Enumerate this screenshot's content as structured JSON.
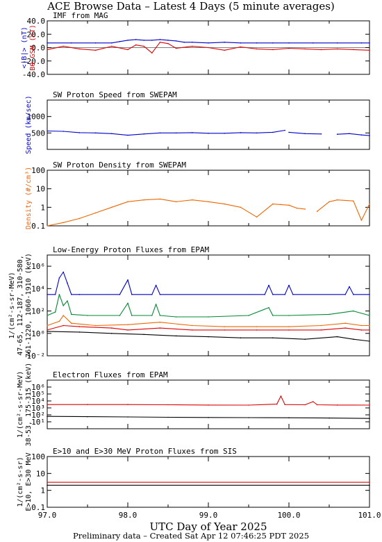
{
  "title": "ACE Browse Data – Latest 4 Days (5 minute averages)",
  "footer": "Preliminary data – Created Sat Apr 12 07:46:25 PDT 2025",
  "colors": {
    "blue": "#0000cc",
    "red": "#dd0000",
    "orange": "#ee6600",
    "green": "#008833",
    "black": "#000000"
  },
  "chart_data": [
    {
      "type": "line",
      "title": "IMF from MAG",
      "ylabel_lines": [
        {
          "text": "<|B|> (nT)",
          "color": "blue"
        },
        {
          "text": "Bθ GSM (nT)",
          "color": "red"
        }
      ],
      "yscale": "linear",
      "ylim": [
        -40,
        40
      ],
      "yticks": [
        "40.0",
        "20.0",
        "0.0",
        "-20.0",
        "-40.0"
      ],
      "xlim": [
        97.0,
        101.0
      ],
      "series": [
        {
          "color": "blue",
          "x": [
            97.0,
            97.3,
            97.6,
            97.8,
            97.9,
            98.0,
            98.1,
            98.2,
            98.3,
            98.4,
            98.5,
            98.6,
            98.7,
            98.8,
            99.0,
            99.2,
            99.4,
            99.6,
            99.8,
            100.0,
            100.3,
            100.6,
            100.9,
            101.0
          ],
          "y": [
            7,
            7,
            7,
            7,
            9,
            11,
            12,
            11,
            11,
            12,
            11,
            10,
            8,
            8,
            7,
            8,
            7,
            7,
            7,
            7,
            7,
            7,
            7,
            7
          ]
        },
        {
          "color": "red",
          "x": [
            97.0,
            97.2,
            97.4,
            97.6,
            97.8,
            98.0,
            98.1,
            98.2,
            98.3,
            98.4,
            98.5,
            98.6,
            98.8,
            99.0,
            99.2,
            99.4,
            99.6,
            99.8,
            100.0,
            100.2,
            100.4,
            100.6,
            100.8,
            101.0
          ],
          "y": [
            -3,
            2,
            -2,
            -4,
            2,
            -3,
            4,
            2,
            -8,
            8,
            6,
            -1,
            2,
            0,
            -4,
            1,
            -2,
            -3,
            -1,
            -2,
            -3,
            -2,
            -3,
            -4
          ]
        }
      ]
    },
    {
      "type": "line",
      "title": "SW Proton Speed from SWEPAM",
      "ylabel_lines": [
        {
          "text": "Speed (km/sec)",
          "color": "blue"
        }
      ],
      "yscale": "linear",
      "ylim": [
        0,
        1500
      ],
      "yticks": [
        "1000",
        "500"
      ],
      "xlim": [
        97.0,
        101.0
      ],
      "series": [
        {
          "color": "blue",
          "x": [
            97.0,
            97.2,
            97.4,
            97.6,
            97.8,
            98.0,
            98.2,
            98.4,
            98.6,
            98.8,
            99.0,
            99.2,
            99.4,
            99.6,
            99.8,
            99.95
          ],
          "y": [
            560,
            550,
            510,
            500,
            480,
            430,
            470,
            500,
            500,
            510,
            490,
            490,
            510,
            500,
            520,
            580
          ]
        },
        {
          "color": "blue",
          "x": [
            100.0,
            100.2,
            100.4
          ],
          "y": [
            520,
            480,
            470
          ]
        },
        {
          "color": "blue",
          "x": [
            100.6,
            100.75,
            100.9,
            101.0
          ],
          "y": [
            460,
            480,
            440,
            420
          ]
        }
      ]
    },
    {
      "type": "line",
      "title": "SW Proton Density from SWEPAM",
      "ylabel_lines": [
        {
          "text": "Density (#/cm³)",
          "color": "orange"
        }
      ],
      "yscale": "log",
      "ylim": [
        0.1,
        100
      ],
      "yticks": [
        "100",
        "10",
        "1",
        "0.1"
      ],
      "xlim": [
        97.0,
        101.0
      ],
      "series": [
        {
          "color": "orange",
          "x": [
            97.0,
            97.2,
            97.4,
            97.6,
            97.8,
            98.0,
            98.2,
            98.4,
            98.6,
            98.8,
            99.0,
            99.2,
            99.4,
            99.6,
            99.8
          ],
          "y": [
            0.1,
            0.15,
            0.25,
            0.5,
            1.0,
            2.0,
            2.5,
            2.8,
            2.0,
            2.5,
            2.0,
            1.5,
            1.0,
            0.3,
            1.5
          ]
        },
        {
          "color": "orange",
          "x": [
            99.8,
            99.9,
            100.0,
            100.1,
            100.2
          ],
          "y": [
            1.5,
            1.4,
            1.3,
            0.9,
            0.8
          ]
        },
        {
          "color": "orange",
          "x": [
            100.35,
            100.5,
            100.6,
            100.8,
            100.9,
            101.0
          ],
          "y": [
            0.6,
            2.0,
            2.5,
            2.2,
            0.2,
            1.5
          ]
        }
      ]
    },
    {
      "type": "line",
      "title": "Low-Energy Proton Fluxes from EPAM",
      "ylabel_lines": [
        {
          "text": "1/(cm²-s-sr-MeV)",
          "color": "black"
        },
        {
          "text": "47-65, 112-187, 310-580,",
          "color": "black"
        },
        {
          "text": "761-1220, 1060-1910 (keV)",
          "color": "black"
        }
      ],
      "yscale": "log",
      "ylim": [
        0.01,
        10000000
      ],
      "yticks": [
        "10⁶",
        "10⁴",
        "10²",
        "10⁰",
        "10⁻²"
      ],
      "xlim": [
        97.0,
        101.0
      ],
      "series": [
        {
          "color": "blue",
          "x": [
            97.0,
            97.1,
            97.15,
            97.2,
            97.25,
            97.3,
            97.4,
            97.9,
            98.0,
            98.05,
            98.3,
            98.35,
            98.4,
            99.7,
            99.75,
            99.8,
            99.95,
            100.0,
            100.05,
            100.7,
            100.75,
            100.8,
            101.0
          ],
          "y": [
            3000,
            3000,
            90000,
            300000,
            30000,
            3000,
            3000,
            3000,
            60000,
            3000,
            3000,
            20000,
            3000,
            3000,
            20000,
            3000,
            3000,
            20000,
            3000,
            3000,
            15000,
            3000,
            3000
          ]
        },
        {
          "color": "green",
          "x": [
            97.0,
            97.1,
            97.15,
            97.2,
            97.25,
            97.3,
            97.5,
            97.9,
            98.0,
            98.05,
            98.3,
            98.35,
            98.4,
            98.6,
            99.0,
            99.5,
            99.75,
            99.8,
            100.0,
            100.5,
            100.8,
            101.0
          ],
          "y": [
            40,
            80,
            3000,
            300,
            800,
            50,
            40,
            40,
            500,
            40,
            40,
            400,
            40,
            30,
            30,
            40,
            200,
            40,
            40,
            50,
            100,
            40
          ]
        },
        {
          "color": "orange",
          "x": [
            97.0,
            97.15,
            97.2,
            97.3,
            97.6,
            98.0,
            98.4,
            98.8,
            99.2,
            99.6,
            100.0,
            100.4,
            100.7,
            100.9,
            101.0
          ],
          "y": [
            5,
            12,
            40,
            8,
            5,
            6,
            10,
            5,
            4,
            4,
            4,
            5,
            8,
            5,
            5
          ]
        },
        {
          "color": "red",
          "x": [
            97.0,
            97.2,
            97.4,
            97.8,
            98.0,
            98.4,
            98.8,
            99.2,
            99.6,
            100.0,
            100.4,
            100.7,
            100.9,
            101.0
          ],
          "y": [
            2,
            5,
            4,
            3,
            2,
            3,
            2,
            2,
            2,
            2,
            2,
            3,
            2,
            2
          ]
        },
        {
          "color": "black",
          "x": [
            97.0,
            97.4,
            97.8,
            98.2,
            98.6,
            99.0,
            99.4,
            99.8,
            100.2,
            100.6,
            100.8,
            101.0
          ],
          "y": [
            1.5,
            1.3,
            1.0,
            0.8,
            0.6,
            0.5,
            0.4,
            0.4,
            0.3,
            0.5,
            0.3,
            0.2
          ]
        }
      ]
    },
    {
      "type": "line",
      "title": "Electron Fluxes from EPAM",
      "ylabel_lines": [
        {
          "text": "1/(cm²-s-sr-MeV)",
          "color": "black"
        },
        {
          "text": "38-53, 175-315 (keV)",
          "color": "black"
        }
      ],
      "yscale": "log",
      "ylim": [
        1,
        10000000
      ],
      "yticks": [
        "10⁶",
        "10⁵",
        "10⁴",
        "10³",
        "10²",
        "10¹"
      ],
      "xlim": [
        97.0,
        101.0
      ],
      "series": [
        {
          "color": "red",
          "x": [
            97.0,
            97.5,
            98.0,
            98.5,
            99.0,
            99.5,
            99.85,
            99.9,
            99.95,
            100.2,
            100.3,
            100.35,
            100.6,
            101.0
          ],
          "y": [
            3000,
            3000,
            3000,
            2800,
            2600,
            2500,
            3500,
            50000,
            3000,
            2800,
            8000,
            2800,
            2600,
            2500
          ]
        },
        {
          "color": "black",
          "x": [
            97.0,
            97.5,
            98.0,
            98.5,
            99.0,
            99.5,
            100.0,
            100.5,
            101.0
          ],
          "y": [
            60,
            55,
            50,
            45,
            42,
            40,
            38,
            35,
            30
          ]
        }
      ]
    },
    {
      "type": "line",
      "title": "E>10 and E>30 MeV Proton Fluxes from SIS",
      "ylabel_lines": [
        {
          "text": "1/(cm²-s-sr)",
          "color": "black"
        },
        {
          "text": "E>10, E>30 MeV",
          "color": "black"
        }
      ],
      "yscale": "log",
      "ylim": [
        0.1,
        100
      ],
      "yticks": [
        "100",
        "10",
        "1",
        "0.1"
      ],
      "xlim": [
        97.0,
        101.0
      ],
      "series": [
        {
          "color": "red",
          "x": [
            97.0,
            101.0
          ],
          "y": [
            3.0,
            3.0
          ]
        },
        {
          "color": "black",
          "x": [
            97.0,
            101.0
          ],
          "y": [
            2.0,
            2.0
          ]
        }
      ]
    }
  ],
  "xaxis": {
    "ticks": [
      "97.0",
      "98.0",
      "99.0",
      "100.0",
      "101.0"
    ],
    "label": "UTC Day of Year 2025"
  }
}
